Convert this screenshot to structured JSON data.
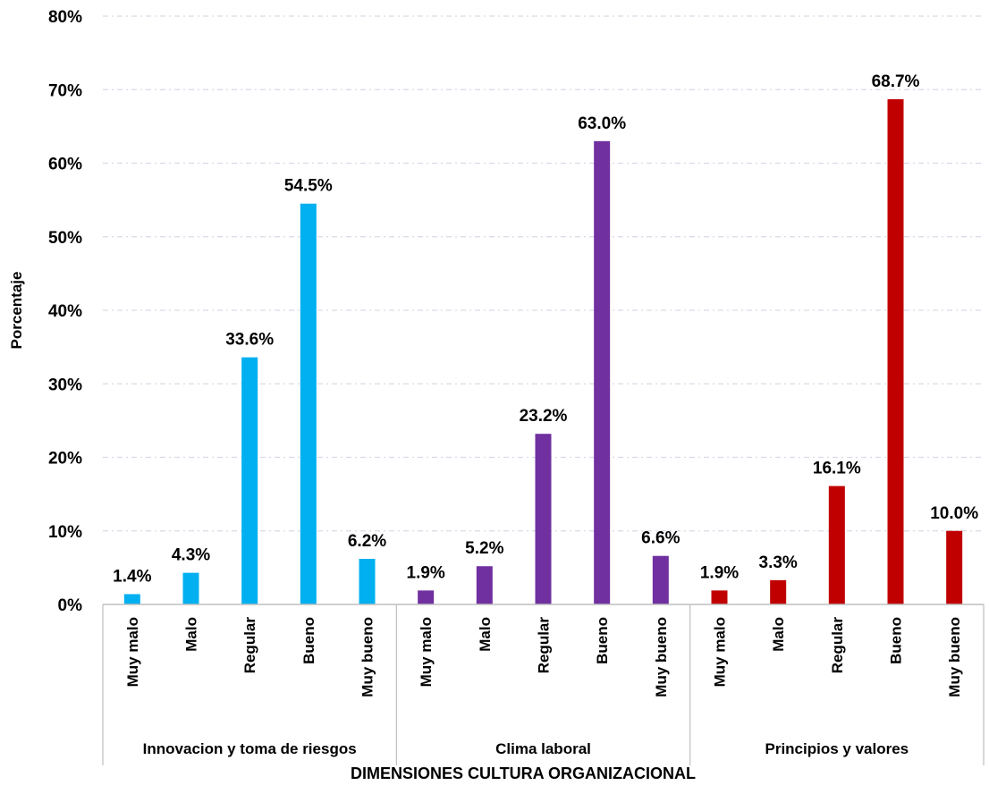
{
  "chart_data": {
    "type": "bar",
    "title": "",
    "xlabel": "DIMENSIONES CULTURA ORGANIZACIONAL",
    "ylabel": "Porcentaje",
    "ylim": [
      0,
      80
    ],
    "yticks": [
      "0%",
      "10%",
      "20%",
      "30%",
      "40%",
      "50%",
      "60%",
      "70%",
      "80%"
    ],
    "grid": "horizontal dashed",
    "legend": "none",
    "groups": [
      {
        "name": "Innovacion y toma de riesgos",
        "color": "#00B0F0",
        "categories": [
          "Muy malo",
          "Malo",
          "Regular",
          "Bueno",
          "Muy bueno"
        ],
        "values": [
          1.4,
          4.3,
          33.6,
          54.5,
          6.2
        ],
        "labels": [
          "1.4%",
          "4.3%",
          "33.6%",
          "54.5%",
          "6.2%"
        ]
      },
      {
        "name": "Clima laboral",
        "color": "#7030A0",
        "categories": [
          "Muy malo",
          "Malo",
          "Regular",
          "Bueno",
          "Muy bueno"
        ],
        "values": [
          1.9,
          5.2,
          23.2,
          63.0,
          6.6
        ],
        "labels": [
          "1.9%",
          "5.2%",
          "23.2%",
          "63.0%",
          "6.6%"
        ]
      },
      {
        "name": "Principios y valores",
        "color": "#C00000",
        "categories": [
          "Muy malo",
          "Malo",
          "Regular",
          "Bueno",
          "Muy bueno"
        ],
        "values": [
          1.9,
          3.3,
          16.1,
          68.7,
          10.0
        ],
        "labels": [
          "1.9%",
          "3.3%",
          "16.1%",
          "68.7%",
          "10.0%"
        ]
      }
    ]
  }
}
